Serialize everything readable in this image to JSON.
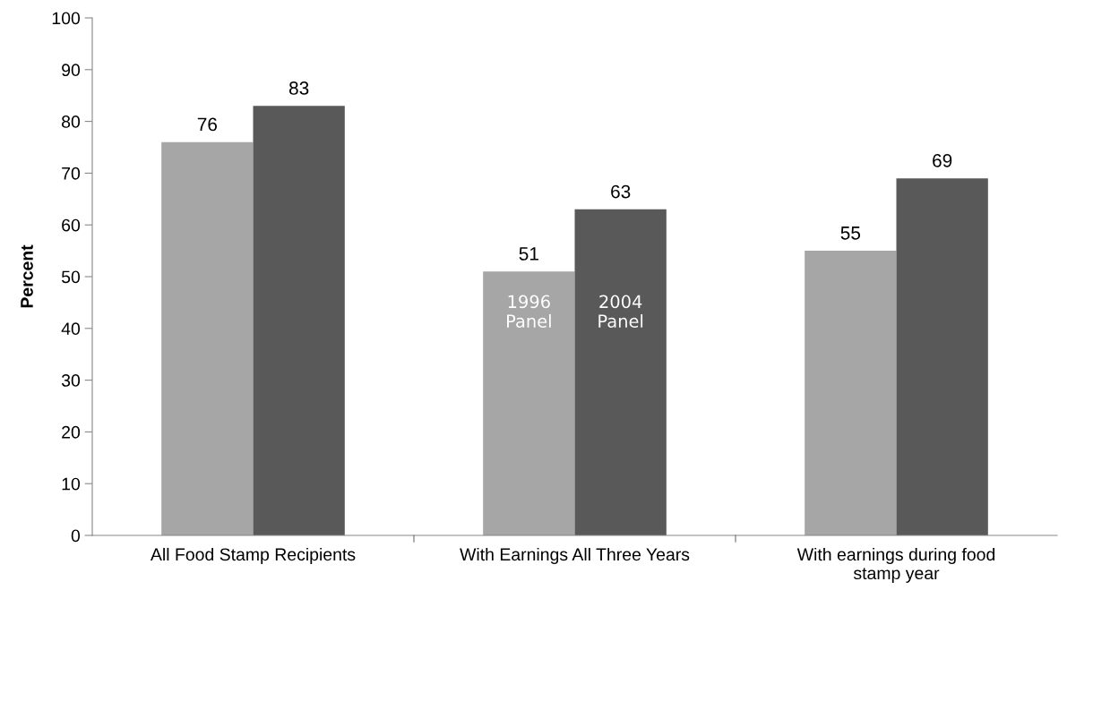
{
  "chart_data": {
    "type": "bar",
    "ylabel": "Percent",
    "categories": [
      "All Food Stamp Recipients",
      "With Earnings All Three Years",
      "With earnings during food\nstamp year"
    ],
    "series": [
      {
        "name": "1996\nPanel",
        "color": "#a6a6a6",
        "values": [
          76,
          51,
          55
        ]
      },
      {
        "name": "2004\nPanel",
        "color": "#595959",
        "values": [
          83,
          63,
          69
        ]
      }
    ],
    "ylim": [
      0,
      100
    ],
    "yticks": [
      0,
      10,
      20,
      30,
      40,
      50,
      60,
      70,
      80,
      90,
      100
    ],
    "data_labels": true,
    "grid": false,
    "legend": false
  }
}
